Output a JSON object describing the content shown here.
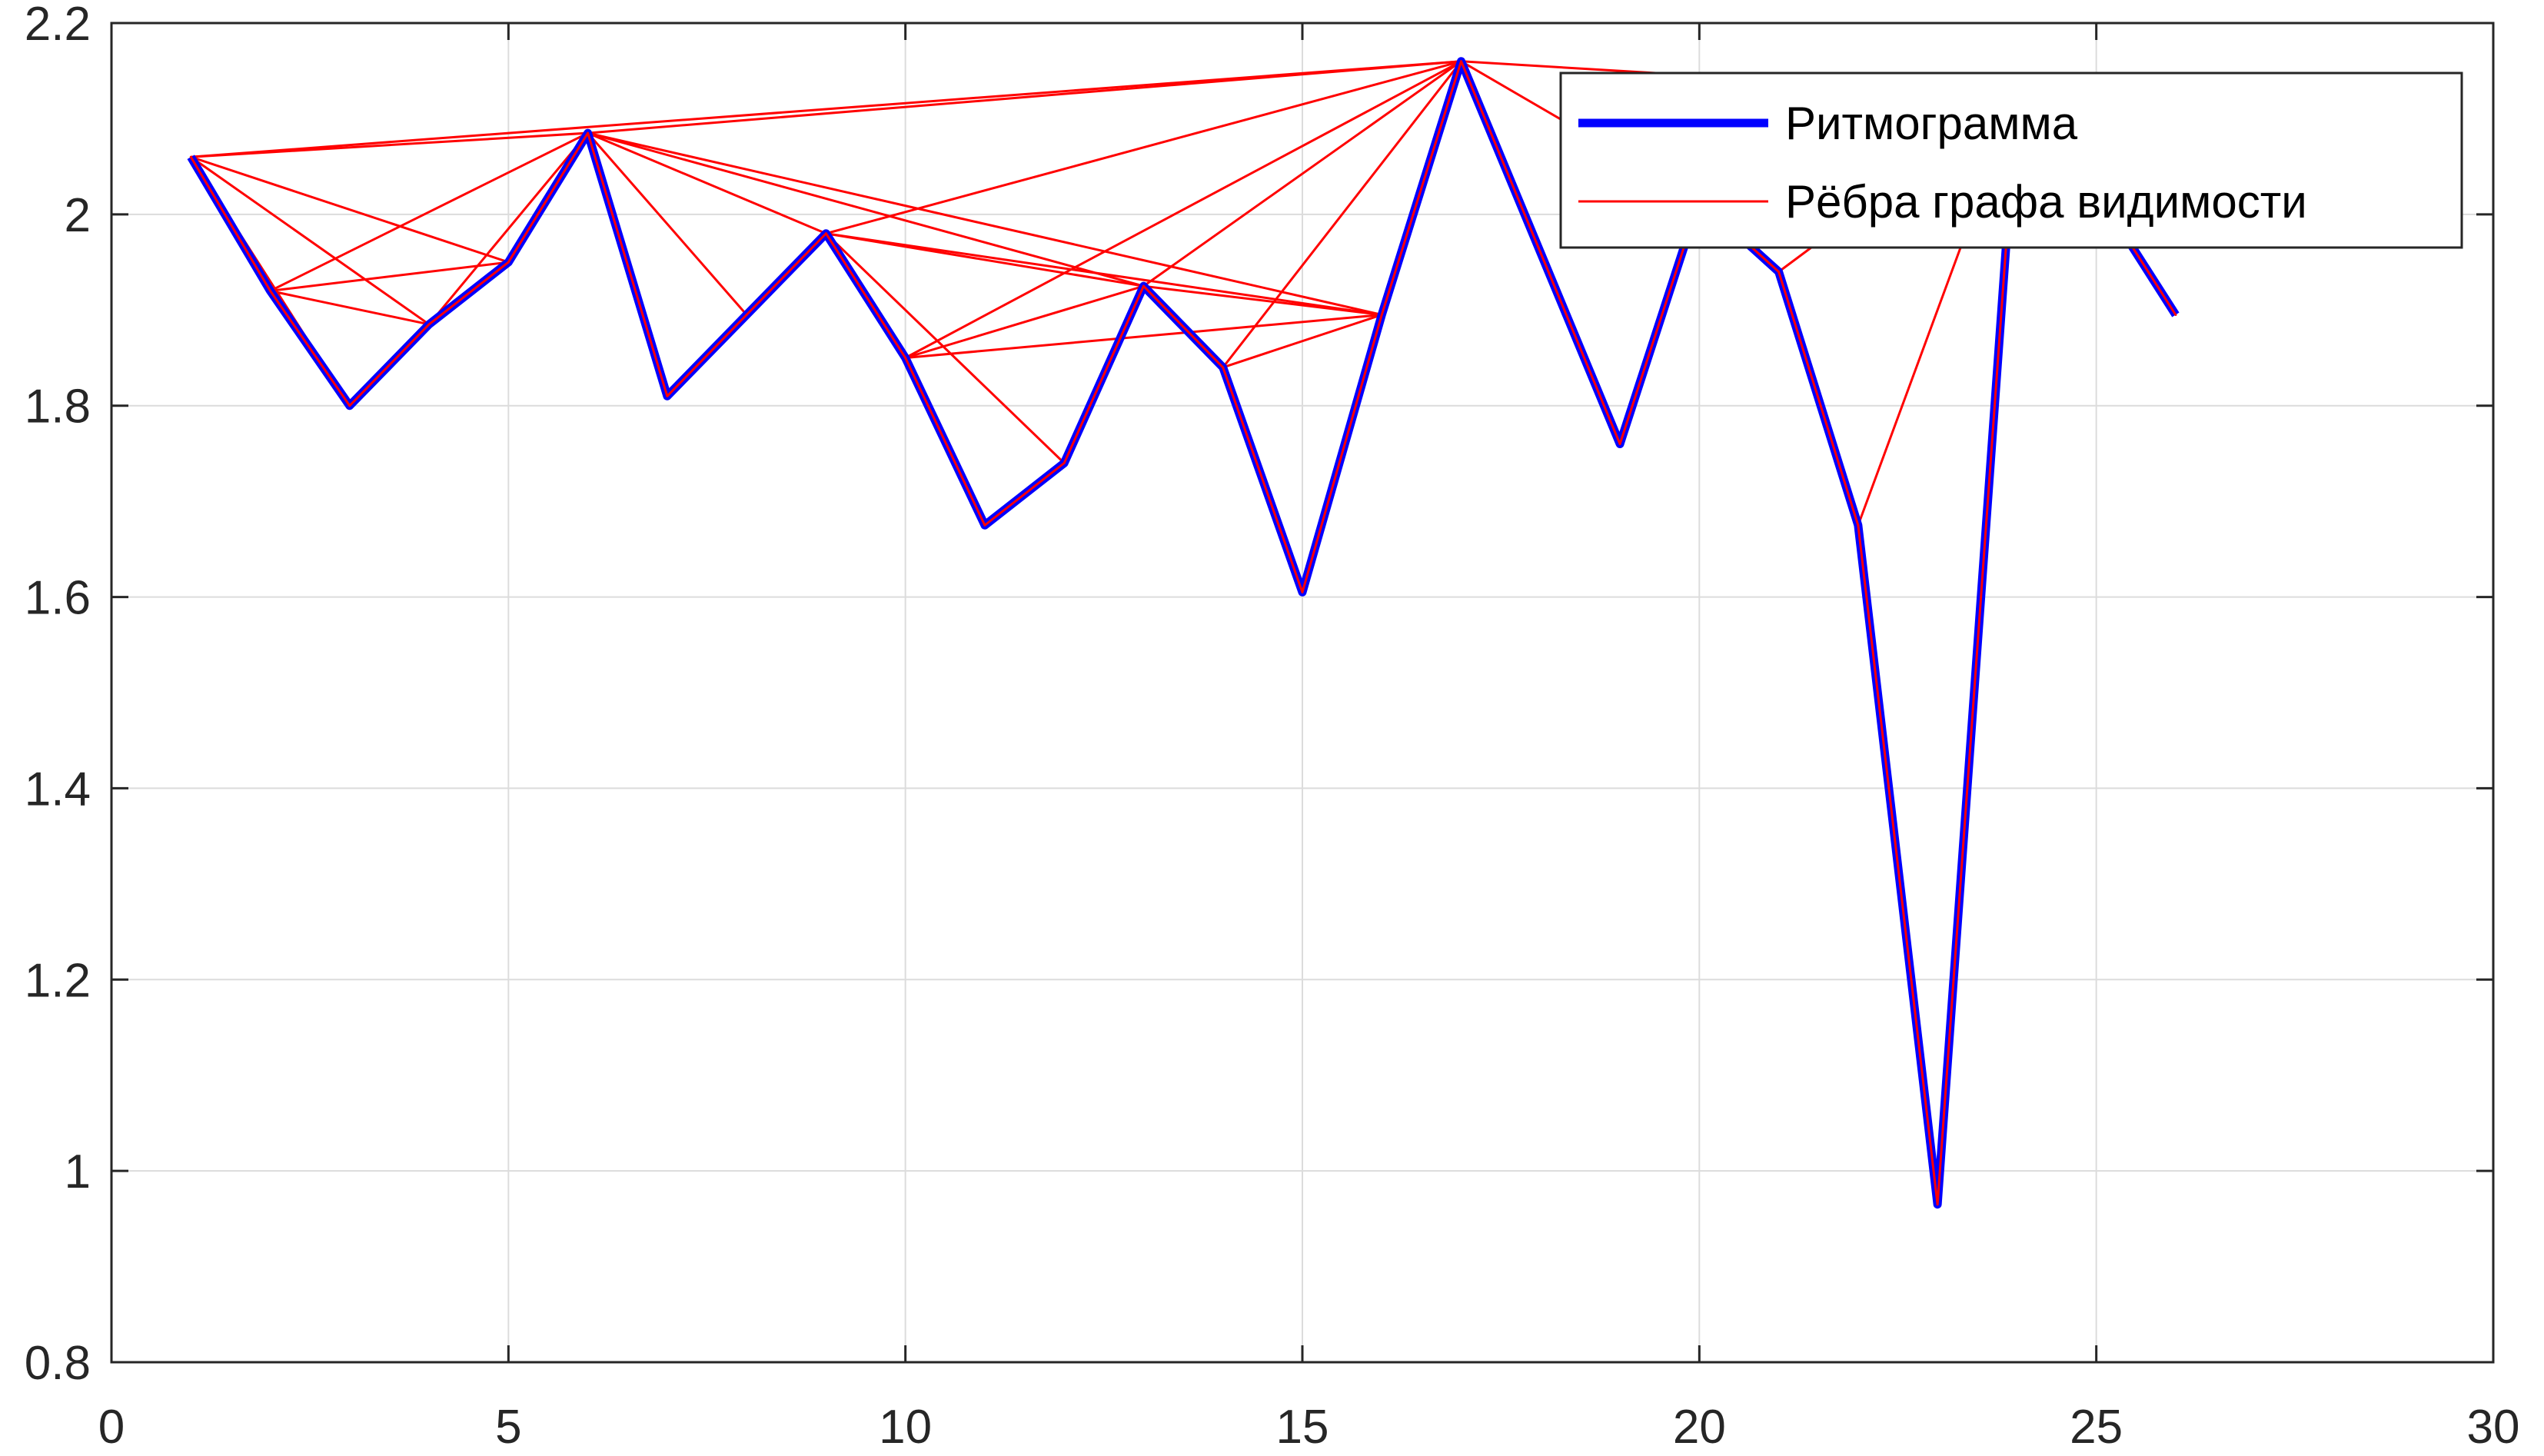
{
  "chart_data": {
    "type": "line",
    "title": "",
    "xlabel": "",
    "ylabel": "",
    "xlim": [
      0,
      30
    ],
    "ylim": [
      0.8,
      2.2
    ],
    "x_ticks": [
      0,
      5,
      10,
      15,
      20,
      25,
      30
    ],
    "x_tick_labels": [
      "0",
      "5",
      "10",
      "15",
      "20",
      "25",
      "30"
    ],
    "y_ticks": [
      0.8,
      1.0,
      1.2,
      1.4,
      1.6,
      1.8,
      2.0,
      2.2
    ],
    "y_tick_labels": [
      "0.8",
      "1",
      "1.2",
      "1.4",
      "1.6",
      "1.8",
      "2",
      "2.2"
    ],
    "grid": true,
    "legend_position": "top-right",
    "colors": {
      "series": "#0000ff",
      "edges": "#ff0000",
      "axes": "#262626",
      "grid": "#dcdcdc"
    },
    "series": [
      {
        "name": "Ритмограмма",
        "x": [
          1,
          2,
          3,
          4,
          5,
          6,
          7,
          8,
          9,
          10,
          11,
          12,
          13,
          14,
          15,
          16,
          17,
          18,
          19,
          20,
          21,
          22,
          23,
          24,
          25,
          26
        ],
        "y": [
          2.06,
          1.92,
          1.8,
          1.885,
          1.95,
          2.085,
          1.81,
          1.895,
          1.98,
          1.85,
          1.675,
          1.74,
          1.925,
          1.84,
          1.605,
          1.895,
          2.16,
          1.96,
          1.76,
          2.015,
          1.94,
          1.675,
          0.965,
          2.125,
          2.025,
          1.895
        ]
      }
    ],
    "edges_series": {
      "name": "Рёбра графа видимости",
      "edges": [
        [
          1,
          2
        ],
        [
          1,
          3
        ],
        [
          1,
          4
        ],
        [
          1,
          5
        ],
        [
          1,
          6
        ],
        [
          1,
          17
        ],
        [
          2,
          3
        ],
        [
          2,
          4
        ],
        [
          2,
          5
        ],
        [
          2,
          6
        ],
        [
          3,
          4
        ],
        [
          4,
          5
        ],
        [
          4,
          6
        ],
        [
          5,
          6
        ],
        [
          6,
          7
        ],
        [
          6,
          8
        ],
        [
          6,
          9
        ],
        [
          6,
          13
        ],
        [
          6,
          16
        ],
        [
          6,
          17
        ],
        [
          7,
          8
        ],
        [
          8,
          9
        ],
        [
          9,
          10
        ],
        [
          9,
          12
        ],
        [
          9,
          13
        ],
        [
          9,
          16
        ],
        [
          9,
          17
        ],
        [
          10,
          11
        ],
        [
          10,
          13
        ],
        [
          10,
          16
        ],
        [
          10,
          17
        ],
        [
          11,
          12
        ],
        [
          12,
          13
        ],
        [
          13,
          14
        ],
        [
          13,
          16
        ],
        [
          13,
          17
        ],
        [
          14,
          15
        ],
        [
          14,
          16
        ],
        [
          14,
          17
        ],
        [
          15,
          16
        ],
        [
          16,
          17
        ],
        [
          17,
          18
        ],
        [
          17,
          19
        ],
        [
          17,
          20
        ],
        [
          17,
          24
        ],
        [
          18,
          19
        ],
        [
          19,
          20
        ],
        [
          20,
          21
        ],
        [
          20,
          24
        ],
        [
          21,
          22
        ],
        [
          21,
          24
        ],
        [
          22,
          23
        ],
        [
          22,
          24
        ],
        [
          23,
          24
        ],
        [
          24,
          25
        ],
        [
          25,
          26
        ]
      ]
    }
  }
}
